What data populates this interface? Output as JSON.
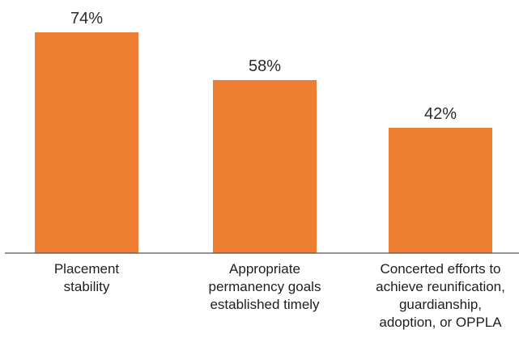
{
  "chart_data": {
    "type": "bar",
    "categories": [
      [
        "Placement",
        "stability"
      ],
      [
        "Appropriate",
        "permanency goals",
        "established timely"
      ],
      [
        "Concerted efforts to",
        "achieve reunification,",
        "guardianship,",
        "adoption, or OPPLA"
      ]
    ],
    "values": [
      74,
      58,
      42
    ],
    "value_labels": [
      "74%",
      "58%",
      "42%"
    ],
    "ylim": [
      0,
      74
    ],
    "title": "",
    "xlabel": "",
    "ylabel": "",
    "grid": false,
    "legend": "none",
    "bar_color": "#ED7D31",
    "baseline_color": "#555555"
  }
}
